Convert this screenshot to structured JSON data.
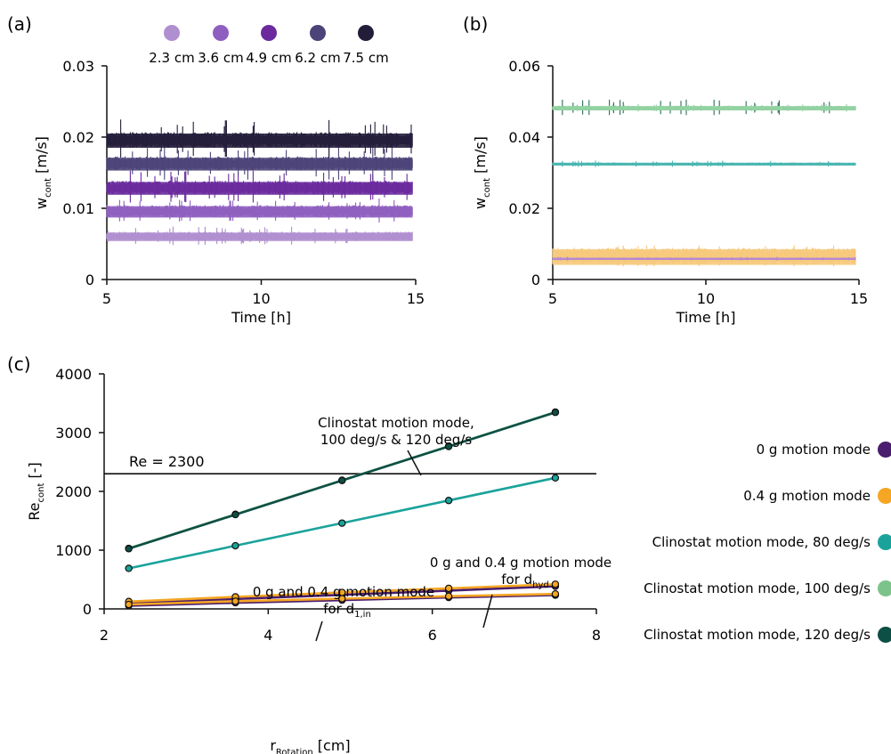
{
  "chart_data": [
    {
      "panel": "(a)",
      "type": "line",
      "xlabel": "Time [h]",
      "ylabel_main": "w",
      "ylabel_sub": "cont",
      "ylabel_unit": " [m/s]",
      "xlim": [
        5,
        15
      ],
      "ylim": [
        0,
        0.03
      ],
      "x_ticks": [
        5,
        10,
        15
      ],
      "y_ticks": [
        {
          "value": 0,
          "label": "0"
        },
        {
          "value": 0.01,
          "label": "0.01"
        },
        {
          "value": 0.02,
          "label": "0.02"
        },
        {
          "value": 0.03,
          "label": "0.03"
        }
      ],
      "x_range": [
        5,
        14.9
      ],
      "legend": [
        {
          "label": "2.3 cm",
          "color": "#b08fd0"
        },
        {
          "label": "3.6 cm",
          "color": "#8f5fc0"
        },
        {
          "label": "4.9 cm",
          "color": "#6a2a9e"
        },
        {
          "label": "6.2 cm",
          "color": "#4c4478"
        },
        {
          "label": "7.5 cm",
          "color": "#231d3a"
        }
      ],
      "series": [
        {
          "name": "2.3 cm",
          "mean": 0.006,
          "band": 0.0006,
          "spike": 0.0015,
          "color": "#b08fd0"
        },
        {
          "name": "3.6 cm",
          "mean": 0.0095,
          "band": 0.0008,
          "spike": 0.002,
          "color": "#8f5fc0"
        },
        {
          "name": "4.9 cm",
          "mean": 0.0128,
          "band": 0.0009,
          "spike": 0.0025,
          "color": "#6a2a9e"
        },
        {
          "name": "6.2 cm",
          "mean": 0.0162,
          "band": 0.0009,
          "spike": 0.0028,
          "color": "#4c4478"
        },
        {
          "name": "7.5 cm",
          "mean": 0.0195,
          "band": 0.001,
          "spike": 0.003,
          "color": "#231d3a"
        }
      ]
    },
    {
      "panel": "(b)",
      "type": "line",
      "xlabel": "Time [h]",
      "ylabel_main": "w",
      "ylabel_sub": "cont",
      "ylabel_unit": " [m/s]",
      "xlim": [
        5,
        15
      ],
      "ylim": [
        0,
        0.06
      ],
      "x_ticks": [
        5,
        10,
        15
      ],
      "y_ticks": [
        {
          "value": 0,
          "label": "0"
        },
        {
          "value": 0.02,
          "label": "0.02"
        },
        {
          "value": 0.04,
          "label": "0.04"
        },
        {
          "value": 0.06,
          "label": "0.06"
        }
      ],
      "x_range": [
        5,
        14.9
      ],
      "series": [
        {
          "name": "0.4 g motion mode",
          "mean": 0.0063,
          "band": 0.0022,
          "spike": 0.0035,
          "color": "#f7c97c"
        },
        {
          "name": "0 g motion mode",
          "mean": 0.0058,
          "band": 0.0003,
          "spike": 0.0006,
          "color": "#b487d2"
        },
        {
          "name": "Clinostat motion mode, 80 deg/s",
          "mean": 0.0324,
          "band": 0.0004,
          "spike": 0.001,
          "color": "#48b5b0"
        },
        {
          "name": "Clinostat motion mode, 120 deg/s",
          "mean": 0.0481,
          "band": 0.0005,
          "spike": 0.0025,
          "color": "#2f6b5c"
        },
        {
          "name": "Clinostat motion mode, 100 deg/s",
          "mean": 0.0481,
          "band": 0.0006,
          "spike": 0.0012,
          "color": "#94d3a2"
        }
      ]
    },
    {
      "panel": "(c)",
      "type": "line",
      "xlabel_main": "r",
      "xlabel_sub": "Rotation",
      "xlabel_unit": " [cm]",
      "ylabel_main": "Re",
      "ylabel_sub": "cont",
      "ylabel_unit": " [-]",
      "xlim": [
        2,
        8
      ],
      "ylim": [
        0,
        4000
      ],
      "x_ticks": [
        2,
        4,
        6,
        8
      ],
      "y_ticks": [
        0,
        1000,
        2000,
        3000,
        4000
      ],
      "x": [
        2.3,
        3.6,
        4.9,
        6.2,
        7.5
      ],
      "reference_line": {
        "label": "Re = 2300",
        "value": 2300
      },
      "series": [
        {
          "name": "0 g motion mode",
          "group": "d_hyd",
          "values": [
            90,
            170,
            240,
            310,
            385
          ],
          "color": "#4a1d6e"
        },
        {
          "name": "0.4 g motion mode",
          "group": "d_hyd",
          "values": [
            125,
            205,
            280,
            350,
            420
          ],
          "color": "#f5a623"
        },
        {
          "name": "0 g motion mode",
          "group": "d_1,in",
          "values": [
            55,
            105,
            150,
            195,
            235
          ],
          "color": "#4a1d6e"
        },
        {
          "name": "0.4 g motion mode",
          "group": "d_1,in",
          "values": [
            75,
            130,
            175,
            215,
            255
          ],
          "color": "#f5a623"
        },
        {
          "name": "Clinostat motion mode, 80 deg/s",
          "values": [
            690,
            1075,
            1460,
            1845,
            2230
          ],
          "color": "#1aa39b"
        },
        {
          "name": "Clinostat motion mode, 100 deg/s",
          "values": [
            1030,
            1610,
            2190,
            2770,
            3350
          ],
          "color": "#7cc38b"
        },
        {
          "name": "Clinostat motion mode, 120 deg/s",
          "values": [
            1025,
            1605,
            2185,
            2765,
            3345
          ],
          "color": "#0e4f45"
        }
      ],
      "annotations": [
        {
          "line1": "Clinostat motion mode,",
          "line2": "100 deg/s & 120 deg/s"
        },
        {
          "line1": "0 g and 0.4 g motion mode",
          "line2_main": "for d",
          "line2_sub": "hyd"
        },
        {
          "line1": "0 g and 0.4 g motion mode",
          "line2_main": "for d",
          "line2_sub": "1,in"
        }
      ],
      "legend": [
        {
          "label": "0 g motion mode",
          "color": "#4a1d6e"
        },
        {
          "label": "0.4 g motion mode",
          "color": "#f5a623"
        },
        {
          "label": "Clinostat motion mode, 80 deg/s",
          "color": "#1aa39b"
        },
        {
          "label": "Clinostat motion mode, 100 deg/s",
          "color": "#7cc38b"
        },
        {
          "label": "Clinostat motion mode, 120 deg/s",
          "color": "#0e4f45"
        }
      ]
    }
  ],
  "panel_labels": {
    "a": "(a)",
    "b": "(b)",
    "c": "(c)"
  }
}
